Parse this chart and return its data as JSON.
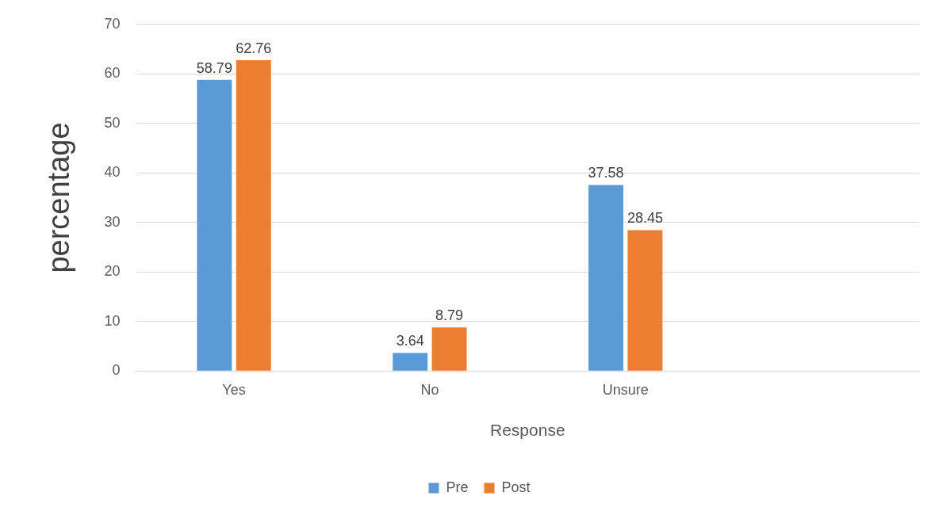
{
  "chart_data": {
    "type": "bar",
    "xlabel": "Response",
    "ylabel": "percentage",
    "categories": [
      "Yes",
      "No",
      "Unsure",
      null
    ],
    "series": [
      {
        "name": "Pre",
        "color": "#5b9bd5",
        "values": [
          58.79,
          3.64,
          37.58,
          null
        ]
      },
      {
        "name": "Post",
        "color": "#ed7d31",
        "values": [
          62.76,
          8.79,
          28.45,
          null
        ]
      }
    ],
    "ylim": [
      0,
      70
    ],
    "yticks": [
      0,
      10,
      20,
      30,
      40,
      50,
      60,
      70
    ],
    "grid": "y",
    "legend": "bottom",
    "data_labels": true
  }
}
